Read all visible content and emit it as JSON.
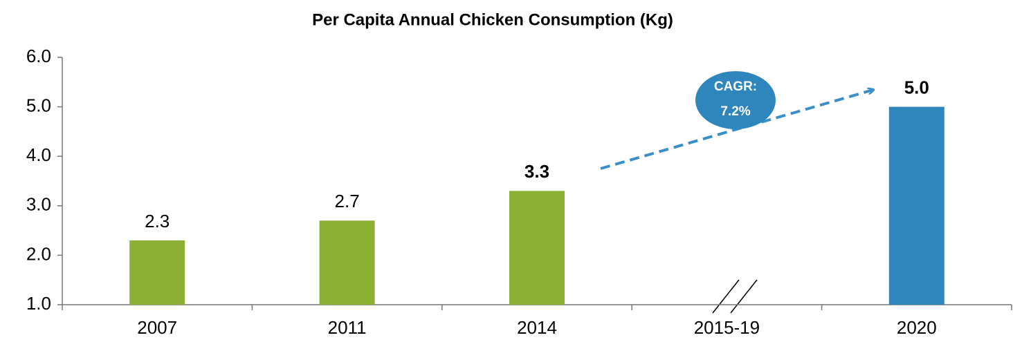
{
  "chart_data": {
    "type": "bar",
    "title": "Per Capita Annual Chicken Consumption (Kg)",
    "categories": [
      "2007",
      "2011",
      "2014",
      "2015-19",
      "2020"
    ],
    "values": [
      2.3,
      2.7,
      3.3,
      null,
      5.0
    ],
    "value_labels": [
      "2.3",
      "2.7",
      "3.3",
      null,
      "5.0"
    ],
    "value_label_bold": [
      false,
      false,
      true,
      null,
      true
    ],
    "colors": [
      "#8bb033",
      "#8bb033",
      "#8bb033",
      null,
      "#2e86bd"
    ],
    "ylim": [
      1.0,
      6.0
    ],
    "yticks": [
      {
        "value": 1,
        "label": "1.0"
      },
      {
        "value": 2,
        "label": "2.0"
      },
      {
        "value": 3,
        "label": "3.0"
      },
      {
        "value": 4,
        "label": "4.0"
      },
      {
        "value": 5,
        "label": "5.0"
      },
      {
        "value": 6,
        "label": "6.0"
      }
    ],
    "annotation": {
      "lines": [
        "CAGR:",
        "7.2%"
      ],
      "color": "#2e86bd"
    }
  }
}
